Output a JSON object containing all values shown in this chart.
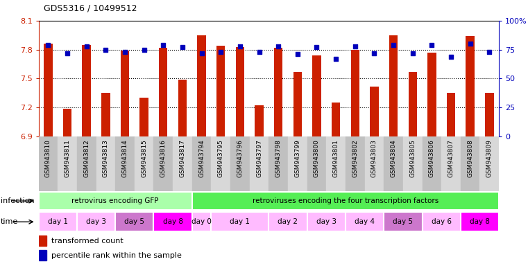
{
  "title": "GDS5316 / 10499512",
  "samples": [
    "GSM943810",
    "GSM943811",
    "GSM943812",
    "GSM943813",
    "GSM943814",
    "GSM943815",
    "GSM943816",
    "GSM943817",
    "GSM943794",
    "GSM943795",
    "GSM943796",
    "GSM943797",
    "GSM943798",
    "GSM943799",
    "GSM943800",
    "GSM943801",
    "GSM943802",
    "GSM943803",
    "GSM943804",
    "GSM943805",
    "GSM943806",
    "GSM943807",
    "GSM943808",
    "GSM943809"
  ],
  "bar_values": [
    7.86,
    7.19,
    7.85,
    7.35,
    7.79,
    7.3,
    7.82,
    7.49,
    7.95,
    7.84,
    7.83,
    7.22,
    7.82,
    7.57,
    7.74,
    7.25,
    7.8,
    7.42,
    7.95,
    7.57,
    7.77,
    7.35,
    7.94,
    7.35
  ],
  "dot_values": [
    79,
    72,
    78,
    75,
    73,
    75,
    79,
    77,
    72,
    73,
    78,
    73,
    78,
    71,
    77,
    67,
    78,
    72,
    79,
    72,
    79,
    69,
    80,
    73
  ],
  "ymin": 6.9,
  "ymax": 8.1,
  "yticks": [
    6.9,
    7.2,
    7.5,
    7.8,
    8.1
  ],
  "ytick_labels": [
    "6.9",
    "7.2",
    "7.5",
    "7.8",
    "8.1"
  ],
  "y2ticks": [
    0,
    25,
    50,
    75,
    100
  ],
  "y2tick_labels": [
    "0",
    "25",
    "50",
    "75",
    "100%"
  ],
  "bar_color": "#cc2000",
  "dot_color": "#0000bb",
  "infection_groups": [
    {
      "label": "retrovirus encoding GFP",
      "start": 0,
      "end": 8,
      "color": "#aaffaa"
    },
    {
      "label": "retroviruses encoding the four transcription factors",
      "start": 8,
      "end": 24,
      "color": "#55ee55"
    }
  ],
  "time_groups": [
    {
      "label": "day 1",
      "start": 0,
      "end": 2,
      "color": "#ffbbff"
    },
    {
      "label": "day 3",
      "start": 2,
      "end": 4,
      "color": "#ffbbff"
    },
    {
      "label": "day 5",
      "start": 4,
      "end": 6,
      "color": "#cc77cc"
    },
    {
      "label": "day 8",
      "start": 6,
      "end": 8,
      "color": "#ff00ff"
    },
    {
      "label": "day 0",
      "start": 8,
      "end": 9,
      "color": "#ffbbff"
    },
    {
      "label": "day 1",
      "start": 9,
      "end": 12,
      "color": "#ffbbff"
    },
    {
      "label": "day 2",
      "start": 12,
      "end": 14,
      "color": "#ffbbff"
    },
    {
      "label": "day 3",
      "start": 14,
      "end": 16,
      "color": "#ffbbff"
    },
    {
      "label": "day 4",
      "start": 16,
      "end": 18,
      "color": "#ffbbff"
    },
    {
      "label": "day 5",
      "start": 18,
      "end": 20,
      "color": "#cc77cc"
    },
    {
      "label": "day 6",
      "start": 20,
      "end": 22,
      "color": "#ffbbff"
    },
    {
      "label": "day 8",
      "start": 22,
      "end": 24,
      "color": "#ff00ff"
    }
  ],
  "legend_bar_label": "transformed count",
  "legend_dot_label": "percentile rank within the sample",
  "infection_label": "infection",
  "time_label": "time",
  "bg_color": "#ffffff",
  "tick_bg_even": "#c0c0c0",
  "tick_bg_odd": "#d8d8d8"
}
